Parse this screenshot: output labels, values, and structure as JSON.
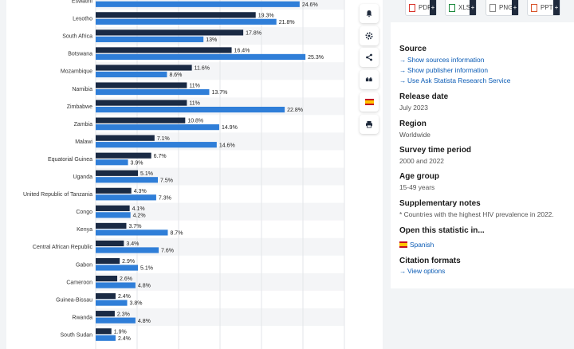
{
  "chart_data": {
    "type": "bar",
    "orientation": "horizontal",
    "categories": [
      "Eswatini",
      "Lesotho",
      "South Africa",
      "Botswana",
      "Mozambique",
      "Namibia",
      "Zimbabwe",
      "Zambia",
      "Malawi",
      "Equatorial Guinea",
      "Uganda",
      "United Republic of Tanzania",
      "Congo",
      "Kenya",
      "Central African Republic",
      "Gabon",
      "Cameroon",
      "Guinea-Bissau",
      "Rwanda",
      "South Sudan"
    ],
    "series": [
      {
        "color": "#1a2a44",
        "values": [
          null,
          19.3,
          17.8,
          16.4,
          11.6,
          11,
          11,
          10.8,
          7.1,
          6.7,
          5.1,
          4.3,
          4.1,
          3.7,
          3.4,
          2.9,
          2.6,
          2.4,
          2.3,
          1.9
        ],
        "labels": [
          "",
          "19.3%",
          "17.8%",
          "16.4%",
          "11.6%",
          "11%",
          "11%",
          "10.8%",
          "7.1%",
          "6.7%",
          "5.1%",
          "4.3%",
          "4.1%",
          "3.7%",
          "3.4%",
          "2.9%",
          "2.6%",
          "2.4%",
          "2.3%",
          "1.9%"
        ]
      },
      {
        "color": "#2f7ed8",
        "values": [
          24.6,
          21.8,
          13,
          25.3,
          8.6,
          13.7,
          22.8,
          14.9,
          14.6,
          3.9,
          7.5,
          7.3,
          4.2,
          8.7,
          7.6,
          5.1,
          4.8,
          3.8,
          4.8,
          2.4
        ],
        "labels": [
          "24.6%",
          "21.8%",
          "13%",
          "25.3%",
          "8.6%",
          "13.7%",
          "22.8%",
          "14.9%",
          "14.6%",
          "3.9%",
          "7.5%",
          "7.3%",
          "4.2%",
          "8.7%",
          "7.6%",
          "5.1%",
          "4.8%",
          "3.8%",
          "4.8%",
          "2.4%"
        ]
      }
    ],
    "xlim": [
      0,
      30
    ],
    "grid": true
  },
  "toolbar": {
    "icons": [
      "bell-icon",
      "gear-icon",
      "share-icon",
      "quote-icon",
      "spanish-flag-icon",
      "print-icon"
    ]
  },
  "downloads": [
    {
      "label": "PDF",
      "color": "#d9342b"
    },
    {
      "label": "XLS",
      "color": "#1d8a3e"
    },
    {
      "label": "PNG",
      "color": "#888888"
    },
    {
      "label": "PPT",
      "color": "#d9542b"
    }
  ],
  "info": {
    "source_title": "Source",
    "source_links": [
      "Show sources information",
      "Show publisher information",
      "Use Ask Statista Research Service"
    ],
    "release_title": "Release date",
    "release_value": "July 2023",
    "region_title": "Region",
    "region_value": "Worldwide",
    "period_title": "Survey time period",
    "period_value": "2000 and 2022",
    "age_title": "Age group",
    "age_value": "15-49 years",
    "notes_title": "Supplementary notes",
    "notes_value": "* Countries with the highest HIV prevalence in 2022.",
    "open_title": "Open this statistic in...",
    "open_link": "Spanish",
    "citation_title": "Citation formats",
    "citation_link": "View options"
  }
}
